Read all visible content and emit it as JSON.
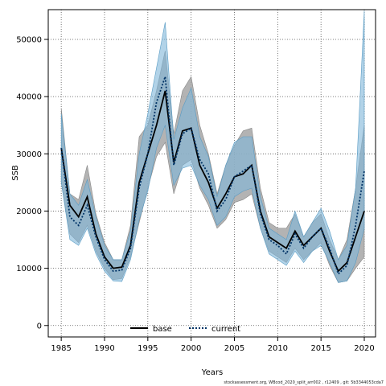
{
  "chart_data": {
    "type": "area",
    "xlabel": "Years",
    "ylabel": "SSB",
    "xlim": [
      1983.5,
      2021.3
    ],
    "ylim": [
      -2000,
      55200
    ],
    "x_ticks": [
      1985,
      1990,
      1995,
      2000,
      2005,
      2010,
      2015,
      2020
    ],
    "y_ticks": [
      0,
      10000,
      20000,
      30000,
      40000,
      50000
    ],
    "grid": true,
    "legend_position": "bottom-center",
    "x": [
      1985,
      1986,
      1987,
      1988,
      1989,
      1990,
      1991,
      1992,
      1993,
      1994,
      1995,
      1996,
      1997,
      1998,
      1999,
      2000,
      2001,
      2002,
      2003,
      2004,
      2005,
      2006,
      2007,
      2008,
      2009,
      2010,
      2011,
      2012,
      2013,
      2014,
      2015,
      2016,
      2017,
      2018,
      2019,
      2020
    ],
    "series": [
      {
        "name": "base",
        "color": "#000000",
        "band_color": "#a6a6a6",
        "values": [
          31000,
          21000,
          19000,
          22500,
          16000,
          12000,
          10000,
          10200,
          14000,
          25000,
          30000,
          35000,
          41000,
          28500,
          34000,
          34500,
          28000,
          25000,
          20500,
          23000,
          26000,
          26500,
          28000,
          20000,
          15500,
          14500,
          13500,
          16500,
          14000,
          15500,
          17000,
          13000,
          9500,
          11000,
          15500,
          20000
        ],
        "lower": [
          25000,
          16000,
          14500,
          17500,
          13000,
          10000,
          8000,
          8200,
          12000,
          18000,
          24000,
          29500,
          32000,
          23000,
          28000,
          29000,
          24000,
          21000,
          17000,
          18500,
          21500,
          22000,
          23000,
          17000,
          13000,
          12000,
          11000,
          13500,
          11500,
          13000,
          14500,
          10500,
          7500,
          7800,
          10000,
          12000
        ],
        "upper": [
          38000,
          23000,
          22000,
          28000,
          19500,
          14500,
          11500,
          11500,
          17500,
          33000,
          35000,
          41000,
          48000,
          33500,
          41000,
          43500,
          35000,
          30000,
          23000,
          28000,
          31500,
          34000,
          34500,
          24000,
          18000,
          17000,
          17000,
          19500,
          15500,
          18000,
          19500,
          15000,
          11500,
          15000,
          24000,
          35000
        ]
      },
      {
        "name": "current",
        "color": "#003366",
        "band_color": "#7fb6d8",
        "values": [
          31000,
          19000,
          17500,
          21000,
          15500,
          11500,
          9500,
          9700,
          13500,
          24000,
          30000,
          39000,
          43500,
          28000,
          33500,
          34500,
          29000,
          26500,
          20000,
          22000,
          26000,
          27000,
          28000,
          19500,
          15000,
          14000,
          12500,
          16000,
          13500,
          15500,
          17000,
          13500,
          9000,
          10500,
          17500,
          27000
        ],
        "lower": [
          25000,
          15000,
          14000,
          17000,
          12500,
          9500,
          7800,
          7700,
          11500,
          18500,
          23500,
          31000,
          35000,
          24500,
          27500,
          28000,
          24500,
          22000,
          17500,
          19000,
          22500,
          23500,
          24000,
          17000,
          12500,
          11500,
          10500,
          13000,
          11000,
          13000,
          14000,
          11000,
          7500,
          7800,
          11000,
          17000
        ],
        "upper": [
          37000,
          23000,
          21000,
          25500,
          19000,
          14000,
          11500,
          11500,
          16500,
          30000,
          37000,
          45000,
          53000,
          32500,
          38000,
          41500,
          33000,
          29500,
          22500,
          28000,
          32000,
          33000,
          33000,
          22500,
          17000,
          16000,
          15000,
          20000,
          15500,
          18000,
          20500,
          16500,
          11500,
          14000,
          24000,
          55000
        ]
      }
    ]
  },
  "footer": "stockassessment.org,  WBcod_2020_split_arr002 , r12409 , git: 5b3344053cda7"
}
